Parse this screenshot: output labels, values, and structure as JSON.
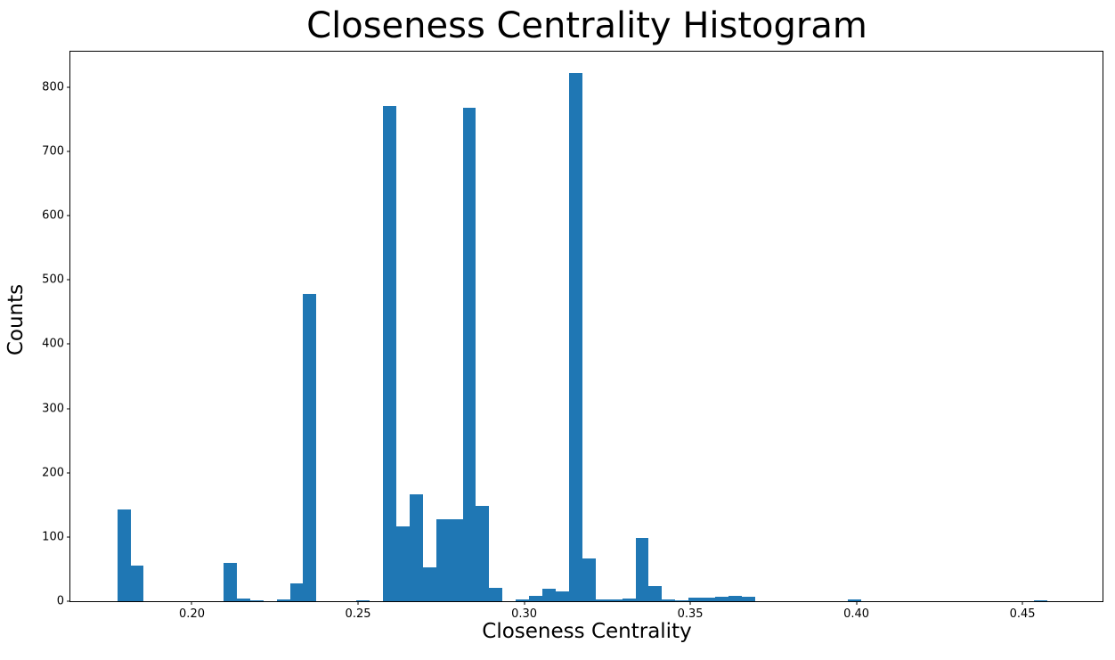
{
  "chart_data": {
    "type": "bar",
    "subtype": "histogram",
    "title": "Closeness Centrality Histogram",
    "xlabel": "Closeness Centrality",
    "ylabel": "Counts",
    "bar_color": "#1f77b4",
    "grid": false,
    "legend": "none",
    "xlim": [
      0.1634,
      0.4741
    ],
    "ylim": [
      0,
      855
    ],
    "xticks": [
      0.2,
      0.25,
      0.3,
      0.35,
      0.4,
      0.45
    ],
    "yticks": [
      0,
      100,
      200,
      300,
      400,
      500,
      600,
      700,
      800
    ],
    "bin_width": 0.004,
    "bars": [
      {
        "x": 0.1775,
        "count": 143
      },
      {
        "x": 0.1815,
        "count": 55
      },
      {
        "x": 0.2095,
        "count": 60
      },
      {
        "x": 0.2135,
        "count": 4
      },
      {
        "x": 0.2175,
        "count": 2
      },
      {
        "x": 0.2255,
        "count": 3
      },
      {
        "x": 0.2295,
        "count": 28
      },
      {
        "x": 0.2335,
        "count": 478
      },
      {
        "x": 0.2495,
        "count": 2
      },
      {
        "x": 0.2575,
        "count": 770
      },
      {
        "x": 0.2615,
        "count": 117
      },
      {
        "x": 0.2655,
        "count": 166
      },
      {
        "x": 0.2695,
        "count": 53
      },
      {
        "x": 0.2735,
        "count": 127
      },
      {
        "x": 0.2775,
        "count": 127
      },
      {
        "x": 0.2815,
        "count": 768
      },
      {
        "x": 0.2855,
        "count": 148
      },
      {
        "x": 0.2895,
        "count": 21
      },
      {
        "x": 0.2975,
        "count": 3
      },
      {
        "x": 0.3015,
        "count": 8
      },
      {
        "x": 0.3055,
        "count": 20
      },
      {
        "x": 0.3095,
        "count": 15
      },
      {
        "x": 0.3135,
        "count": 822
      },
      {
        "x": 0.3175,
        "count": 66
      },
      {
        "x": 0.3215,
        "count": 3
      },
      {
        "x": 0.3255,
        "count": 3
      },
      {
        "x": 0.3295,
        "count": 4
      },
      {
        "x": 0.3335,
        "count": 98
      },
      {
        "x": 0.3375,
        "count": 23
      },
      {
        "x": 0.3415,
        "count": 3
      },
      {
        "x": 0.3455,
        "count": 2
      },
      {
        "x": 0.3495,
        "count": 5
      },
      {
        "x": 0.3535,
        "count": 5
      },
      {
        "x": 0.3575,
        "count": 7
      },
      {
        "x": 0.3615,
        "count": 8
      },
      {
        "x": 0.3655,
        "count": 7
      },
      {
        "x": 0.3975,
        "count": 3
      },
      {
        "x": 0.4535,
        "count": 2
      }
    ]
  }
}
